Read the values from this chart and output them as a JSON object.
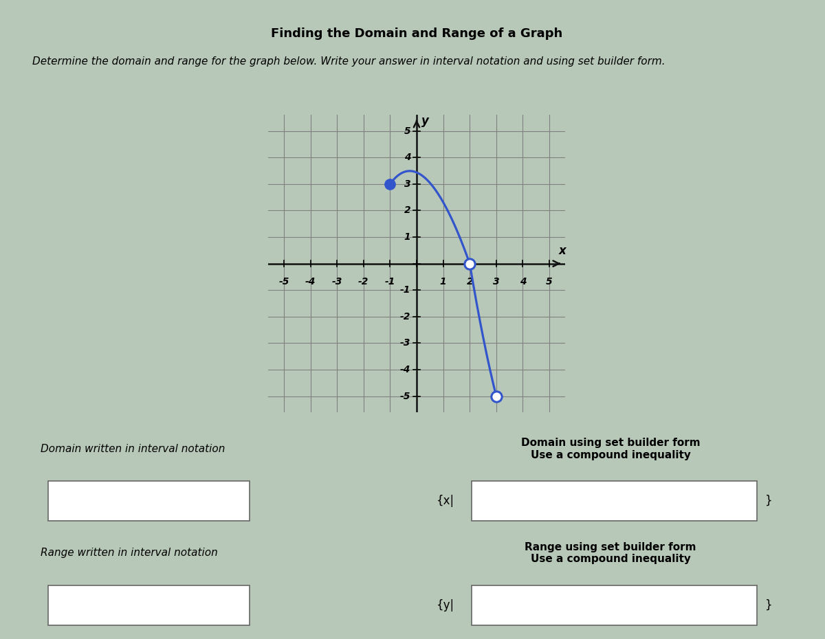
{
  "title": "Finding the Domain and Range of a Graph",
  "instructions": "Determine the domain and range for the graph below. Write your answer in interval notation and using set builder form.",
  "x_min": -5,
  "x_max": 5,
  "y_min": -5,
  "y_max": 5,
  "closed_point": [
    -1,
    3
  ],
  "open_point_1": [
    2,
    0
  ],
  "open_point_2": [
    3,
    -5
  ],
  "bezier_P0": [
    -1.0,
    3.0
  ],
  "bezier_P1": [
    0.3,
    4.8
  ],
  "bezier_P2": [
    2.0,
    0.0
  ],
  "bezier2_P0": [
    2.0,
    0.0
  ],
  "bezier2_P1": [
    2.5,
    -3.0
  ],
  "bezier2_P2": [
    3.0,
    -5.0
  ],
  "curve_color": "#3355cc",
  "closed_color": "#3355cc",
  "open_edge_color": "#3355cc",
  "bg_outer": "#b8c8b8",
  "bg_graph": "#c5d8c5",
  "bg_cells": "#c5d4c5",
  "grid_color": "#808080",
  "axis_color": "#111111",
  "label_domain_interval": "Domain written in interval notation",
  "label_domain_set": "Domain using set builder form\nUse a compound inequality",
  "label_range_interval": "Range written in interval notation",
  "label_range_set": "Range using set builder form\nUse a compound inequality",
  "x_prefix": "{x|",
  "y_prefix": "{y|",
  "close_brace": "}"
}
